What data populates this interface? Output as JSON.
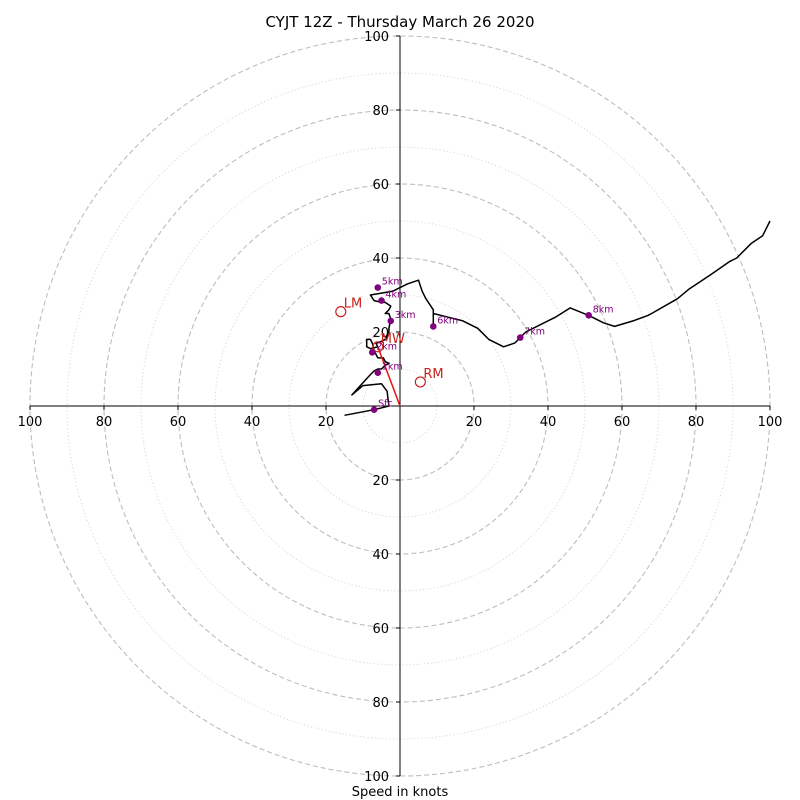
{
  "chart_data": {
    "type": "scatter",
    "title": "CYJT 12Z - Thursday March 26 2020",
    "xlabel": "Speed in knots",
    "ylabel": "",
    "xlim": [
      -100,
      100
    ],
    "ylim": [
      -100,
      100
    ],
    "ring_step_major": 20,
    "ring_step_minor": 10,
    "x_tick_labels": [
      "100",
      "80",
      "60",
      "40",
      "20",
      "",
      "20",
      "40",
      "60",
      "80",
      "100"
    ],
    "x_tick_values": [
      -100,
      -80,
      -60,
      -40,
      -20,
      0,
      20,
      40,
      60,
      80,
      100
    ],
    "y_tick_labels": [
      "100",
      "80",
      "60",
      "40",
      "20",
      "20",
      "40",
      "60",
      "80",
      "100"
    ],
    "y_tick_values": [
      100,
      80,
      60,
      40,
      20,
      -20,
      -40,
      -60,
      -80,
      -100
    ],
    "hodograph": {
      "color": "#000000",
      "points": [
        [
          -15,
          -2.5
        ],
        [
          -7,
          -1
        ],
        [
          -3,
          0
        ],
        [
          -3.5,
          4
        ],
        [
          -5,
          6
        ],
        [
          -10,
          5.5
        ],
        [
          -13,
          3
        ],
        [
          -8,
          8.5
        ],
        [
          -7,
          9.5
        ],
        [
          -6,
          10
        ],
        [
          -5,
          10
        ],
        [
          -4,
          11
        ],
        [
          -3,
          11.5
        ],
        [
          -4,
          12
        ],
        [
          -4.5,
          13
        ],
        [
          -6,
          13
        ],
        [
          -6.5,
          14
        ],
        [
          -7,
          15
        ],
        [
          -7.5,
          17
        ],
        [
          -8,
          18
        ],
        [
          -9,
          18
        ],
        [
          -9,
          16
        ],
        [
          -8,
          15.5
        ],
        [
          -6,
          16
        ],
        [
          -6.5,
          17
        ],
        [
          -5,
          17.5
        ],
        [
          -4,
          18
        ],
        [
          -3,
          19.5
        ],
        [
          -3,
          21
        ],
        [
          -2.5,
          23.5
        ],
        [
          -3,
          25
        ],
        [
          -4,
          25
        ],
        [
          -3,
          26
        ],
        [
          -2.5,
          27
        ],
        [
          -4,
          28
        ],
        [
          -5,
          28
        ],
        [
          -7,
          28.5
        ],
        [
          -8,
          30
        ],
        [
          -5,
          30.5
        ],
        [
          -2,
          31
        ],
        [
          0,
          32
        ],
        [
          2,
          33
        ],
        [
          5,
          34
        ],
        [
          6,
          31
        ],
        [
          7,
          29
        ],
        [
          9,
          26
        ],
        [
          9,
          21.5
        ],
        [
          9,
          22
        ],
        [
          9,
          25
        ],
        [
          13,
          24
        ],
        [
          17,
          23
        ],
        [
          21,
          21
        ],
        [
          24,
          18
        ],
        [
          28,
          16
        ],
        [
          31,
          17
        ],
        [
          34,
          20
        ],
        [
          38,
          22
        ],
        [
          42,
          24
        ],
        [
          46,
          26.5
        ],
        [
          51,
          24.5
        ],
        [
          55,
          22.5
        ],
        [
          58,
          21.5
        ],
        [
          63,
          23
        ],
        [
          67,
          24.5
        ],
        [
          68,
          25
        ],
        [
          75,
          29
        ],
        [
          78,
          31.5
        ],
        [
          84,
          35.5
        ],
        [
          89,
          39
        ],
        [
          91,
          40
        ],
        [
          95,
          44
        ],
        [
          98,
          46
        ],
        [
          100,
          50
        ]
      ]
    },
    "height_markers": {
      "color": "#800080",
      "points": [
        {
          "label": "Sfc",
          "x": -7,
          "y": -1
        },
        {
          "label": "1km",
          "x": -6,
          "y": 9
        },
        {
          "label": "2km",
          "x": -7.5,
          "y": 14.5
        },
        {
          "label": "3km",
          "x": -2.5,
          "y": 23
        },
        {
          "label": "4km",
          "x": -5,
          "y": 28.5
        },
        {
          "label": "5km",
          "x": -6,
          "y": 32
        },
        {
          "label": "6km",
          "x": 9,
          "y": 21.5
        },
        {
          "label": "7km",
          "x": 32.5,
          "y": 18.5
        },
        {
          "label": "8km",
          "x": 51,
          "y": 24.5
        }
      ]
    },
    "storm_motion": {
      "color": "#c8231e",
      "points": [
        {
          "label": "LM",
          "x": -16,
          "y": 25.5
        },
        {
          "label": "MW",
          "x": -6,
          "y": 16
        },
        {
          "label": "RM",
          "x": 5.5,
          "y": 6.5
        }
      ],
      "vector_from": [
        0,
        0
      ],
      "vector_to": [
        -6,
        16
      ]
    },
    "grid": true
  }
}
